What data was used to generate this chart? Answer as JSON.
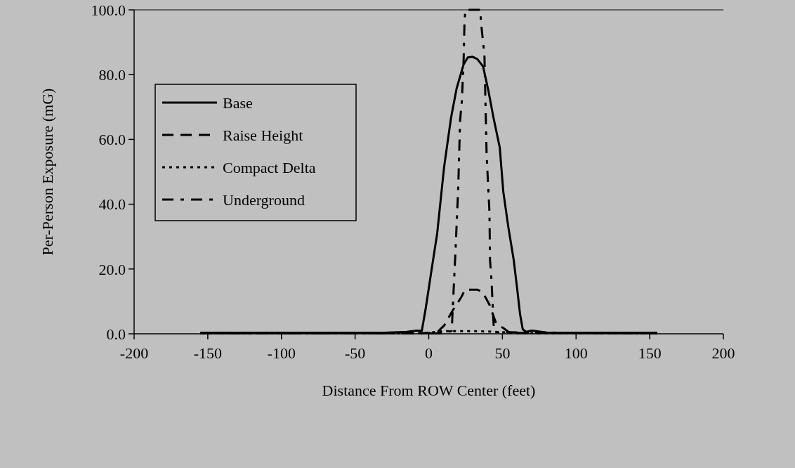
{
  "chart_data": {
    "type": "line",
    "xlabel": "Distance From ROW Center (feet)",
    "ylabel": "Per-Person Exposure (mG)",
    "xlim": [
      -200,
      200
    ],
    "ylim": [
      0,
      100
    ],
    "xticks": [
      -200,
      -150,
      -100,
      -50,
      0,
      50,
      100,
      150,
      200
    ],
    "yticks": [
      {
        "value": 0,
        "label": "0.0"
      },
      {
        "value": 20,
        "label": "20.0"
      },
      {
        "value": 40,
        "label": "40.0"
      },
      {
        "value": 60,
        "label": "60.0"
      },
      {
        "value": 80,
        "label": "80.0"
      },
      {
        "value": 100,
        "label": "100.0"
      }
    ],
    "grid": false,
    "legend": "top left",
    "marker": "none",
    "series": [
      {
        "name": "Base",
        "color": "#000000",
        "line_style": "solid",
        "x": [
          -155,
          -30,
          -15,
          -8,
          -4.7,
          -2,
          1.4,
          5.7,
          10.4,
          15.1,
          18.9,
          23.7,
          26.5,
          29.8,
          33,
          36.9,
          40.5,
          44,
          48.2,
          50.6,
          54,
          57.7,
          60,
          62,
          63.8,
          66,
          70,
          80,
          100,
          155
        ],
        "values": [
          0.3,
          0.3,
          0.6,
          1,
          0.9,
          8,
          18.2,
          30.9,
          51.4,
          66.6,
          75.7,
          83.2,
          85.3,
          85.5,
          84.8,
          82.5,
          75,
          66.6,
          57.5,
          43.9,
          33,
          22.7,
          14,
          6,
          1.4,
          0.6,
          1,
          0.4,
          0.3,
          0.3
        ]
      },
      {
        "name": "Raise Height",
        "color": "#000000",
        "line_style": "dashed",
        "x": [
          -155,
          0,
          6,
          8,
          10.4,
          16,
          22.2,
          24.6,
          33.1,
          36.4,
          41.2,
          45.9,
          50.6,
          55,
          155
        ],
        "values": [
          0.2,
          0.2,
          0.5,
          1.5,
          2.5,
          7,
          11.4,
          13.6,
          13.6,
          13,
          9,
          3,
          1.8,
          0.3,
          0.2
        ]
      },
      {
        "name": "Compact Delta",
        "color": "#000000",
        "line_style": "dotted",
        "x": [
          -155,
          -10,
          0,
          5,
          10,
          20,
          30,
          40,
          50,
          60,
          155
        ],
        "values": [
          0.1,
          0.1,
          0.3,
          0.6,
          0.8,
          0.8,
          0.8,
          0.7,
          0.5,
          0.2,
          0.1
        ]
      },
      {
        "name": "Underground",
        "color": "#000000",
        "line_style": "dashdot",
        "x": [
          -155,
          10,
          15.6,
          16.5,
          18,
          20,
          21.3,
          22.5,
          23.7,
          24.3,
          25,
          35,
          35.5,
          37.8,
          39.3,
          41.2,
          41.6,
          42.6,
          44,
          45,
          155
        ],
        "values": [
          0.1,
          0.1,
          0.9,
          10,
          24,
          45,
          66,
          72,
          85,
          97,
          100,
          100,
          96,
          86,
          55,
          37.7,
          22.7,
          16.6,
          3,
          0.5,
          0.1
        ]
      }
    ]
  }
}
